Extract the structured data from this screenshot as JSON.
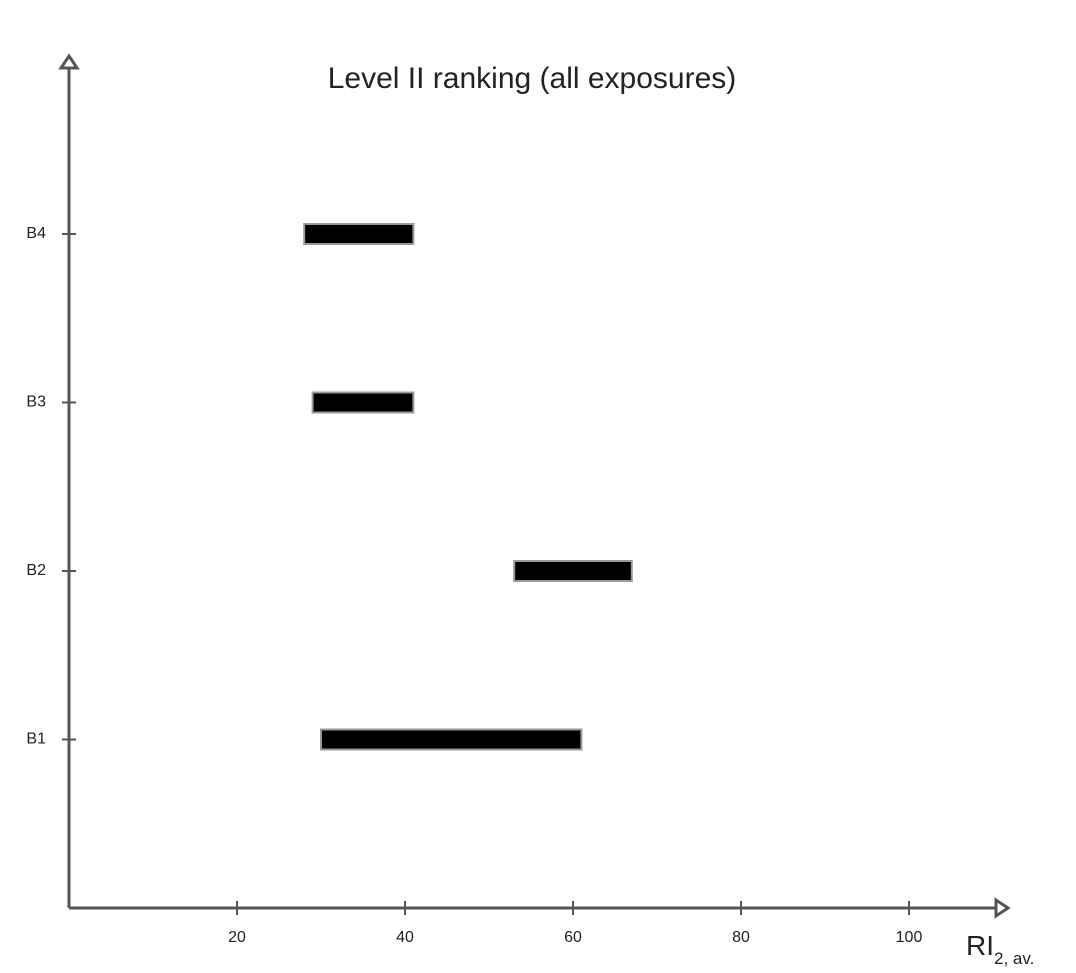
{
  "chart_data": {
    "type": "range",
    "title": "Level II ranking (all exposures)",
    "categories": [
      "B1",
      "B2",
      "B3",
      "B4"
    ],
    "low": [
      30,
      53,
      29,
      28
    ],
    "high": [
      61,
      67,
      41,
      41
    ],
    "color": "#000000",
    "xlim": [
      0,
      110
    ],
    "xticks": [
      20,
      40,
      60,
      80,
      100
    ],
    "xlabel": "RI",
    "xlabel_subscript": "2, av."
  }
}
